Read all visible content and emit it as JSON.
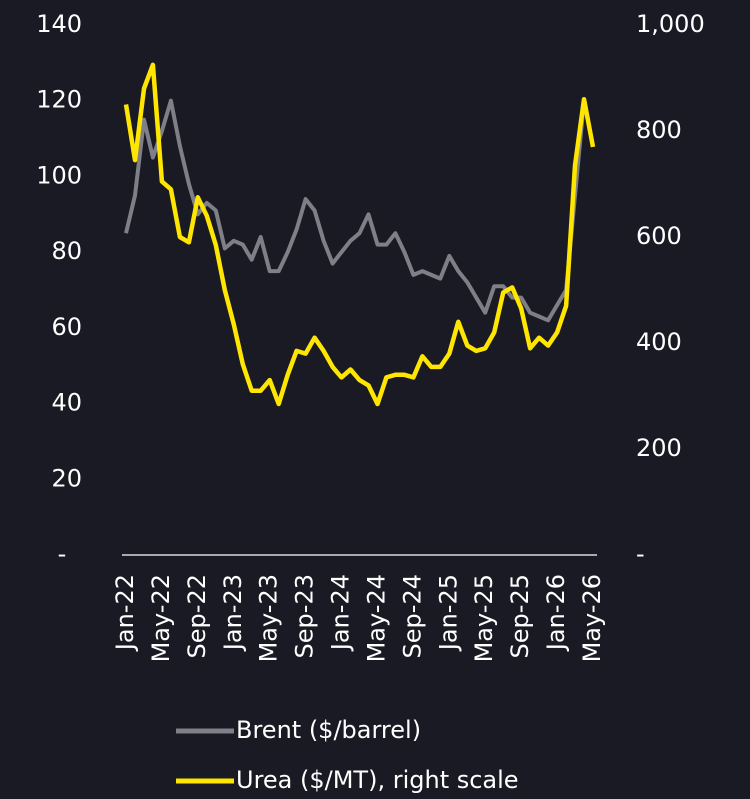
{
  "chart_data": {
    "type": "line",
    "categories": [
      "Jan-22",
      null,
      null,
      null,
      "May-22",
      null,
      null,
      null,
      "Sep-22",
      null,
      null,
      null,
      "Jan-23",
      null,
      null,
      null,
      "May-23",
      null,
      null,
      null,
      "Sep-23",
      null,
      null,
      null,
      "Jan-24",
      null,
      null,
      null,
      "May-24",
      null,
      null,
      null,
      "Sep-24",
      null,
      null,
      null,
      "Jan-25",
      null,
      null,
      null,
      "May-25",
      null,
      null,
      null,
      "Sep-25",
      null,
      null,
      null,
      "Jan-26",
      null,
      null,
      null,
      "May-26"
    ],
    "series": [
      {
        "name": "Brent ($/barrel)",
        "color": "#7f7f87",
        "values": [
          85,
          95,
          115,
          105,
          112,
          120,
          108,
          98,
          90,
          93,
          91,
          81,
          83,
          82,
          78,
          84,
          75,
          75,
          80,
          86,
          94,
          91,
          83,
          77,
          80,
          83,
          85,
          90,
          82,
          82,
          85,
          80,
          74,
          75,
          74,
          73,
          79,
          75,
          72,
          68,
          64,
          71,
          71,
          68,
          68,
          64,
          63,
          62,
          66,
          70,
          95,
          120,
          null
        ]
      },
      {
        "name": "Urea ($/MT), right scale",
        "color": "#ffe600",
        "axis": "y2",
        "values": [
          850,
          745,
          880,
          925,
          705,
          690,
          600,
          590,
          675,
          640,
          585,
          500,
          435,
          360,
          310,
          310,
          330,
          285,
          340,
          385,
          380,
          410,
          385,
          355,
          335,
          350,
          330,
          320,
          285,
          335,
          340,
          340,
          335,
          375,
          355,
          355,
          380,
          440,
          395,
          385,
          390,
          420,
          495,
          505,
          465,
          390,
          410,
          395,
          420,
          470,
          735,
          860,
          770
        ]
      }
    ],
    "ylim": [
      0,
      140
    ],
    "yticks": [
      {
        "value": 0,
        "label": "-"
      },
      20,
      40,
      60,
      80,
      100,
      120,
      140
    ],
    "y2lim": [
      0,
      1000
    ],
    "y2ticks": [
      {
        "value": 0,
        "label": "-"
      },
      200,
      400,
      600,
      800,
      {
        "value": 1000,
        "label": "1,000"
      }
    ]
  }
}
